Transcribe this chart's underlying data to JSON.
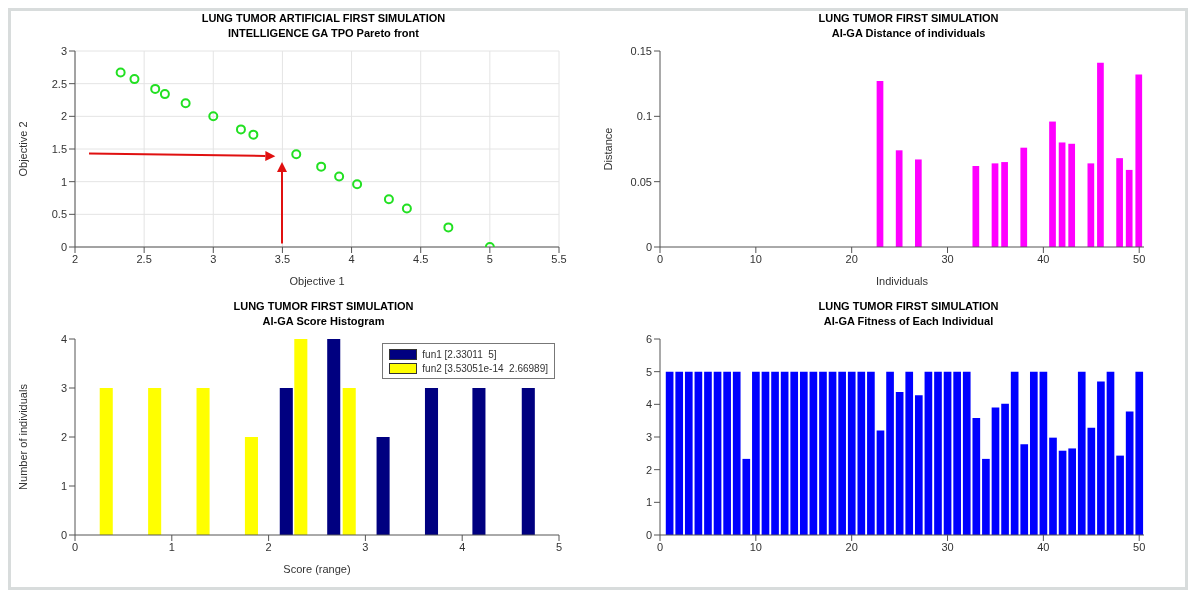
{
  "chart_data": [
    {
      "type": "scatter",
      "title": "LUNG TUMOR ARTIFICIAL FIRST SIMULATION\nINTELLIGENCE GA TPO Pareto front",
      "xlabel": "Objective 1",
      "ylabel": "Objective 2",
      "x": [
        2.33,
        2.43,
        2.58,
        2.65,
        2.8,
        3.0,
        3.2,
        3.29,
        3.6,
        3.78,
        3.91,
        4.04,
        4.27,
        4.4,
        4.7,
        5.0
      ],
      "values": [
        2.67,
        2.57,
        2.42,
        2.34,
        2.2,
        2.0,
        1.8,
        1.72,
        1.42,
        1.23,
        1.08,
        0.96,
        0.73,
        0.59,
        0.3,
        0.0
      ],
      "color": "#22e022",
      "marker": "circle",
      "xlim": [
        2,
        5.5
      ],
      "xticks": [
        2,
        2.5,
        3,
        3.5,
        4,
        4.5,
        5,
        5.5
      ],
      "ylim": [
        0,
        3
      ],
      "yticks": [
        0,
        0.5,
        1,
        1.5,
        2,
        2.5,
        3
      ],
      "grid": true
    },
    {
      "type": "bar",
      "title": "LUNG TUMOR FIRST SIMULATION\nAI-GA Distance of individuals",
      "xlabel": "Individuals",
      "ylabel": "Distance",
      "x": [
        1,
        2,
        3,
        4,
        5,
        6,
        7,
        8,
        9,
        10,
        11,
        12,
        13,
        14,
        15,
        16,
        17,
        18,
        19,
        20,
        21,
        22,
        23,
        24,
        25,
        26,
        27,
        28,
        29,
        30,
        31,
        32,
        33,
        34,
        35,
        36,
        37,
        38,
        39,
        40,
        41,
        42,
        43,
        44,
        45,
        46,
        47,
        48,
        49,
        50
      ],
      "values": [
        0,
        0,
        0,
        0,
        0,
        0,
        0,
        0,
        0,
        0,
        0,
        0,
        0,
        0,
        0,
        0,
        0,
        0,
        0,
        0,
        0,
        0,
        0.127,
        0,
        0.074,
        0,
        0.067,
        0,
        0,
        0,
        0,
        0,
        0.062,
        0,
        0.064,
        0.065,
        0,
        0.076,
        0,
        0,
        0.096,
        0.08,
        0.079,
        0,
        0.064,
        0.141,
        0,
        0.068,
        0.059,
        0.132
      ],
      "color": "#ff00ff",
      "xlim": [
        0,
        50.5
      ],
      "xticks": [
        0,
        10,
        20,
        30,
        40,
        50
      ],
      "ylim": [
        0,
        0.15
      ],
      "yticks": [
        0,
        0.05,
        0.1,
        0.15
      ]
    },
    {
      "type": "bar",
      "title": "LUNG TUMOR FIRST SIMULATION\nAI-GA Score Histogram",
      "xlabel": "Score (range)",
      "ylabel": "Number of individuals",
      "legend": "top right",
      "series": [
        {
          "name": "fun1 [2.33011  5]",
          "color": "#000080",
          "x": [
            2.18,
            2.67,
            3.18,
            3.68,
            4.17,
            4.68
          ],
          "values": [
            3,
            4,
            2,
            3,
            3,
            3
          ]
        },
        {
          "name": "fun2 [3.53051e-14  2.66989]",
          "color": "#ffff00",
          "x": [
            0.32,
            0.82,
            1.32,
            1.82,
            2.33,
            2.83
          ],
          "values": [
            3,
            3,
            3,
            2,
            4,
            3
          ]
        }
      ],
      "xlim": [
        0,
        5
      ],
      "xticks": [
        0,
        1,
        2,
        3,
        4,
        5
      ],
      "ylim": [
        0,
        4
      ],
      "yticks": [
        0,
        1,
        2,
        3,
        4
      ]
    },
    {
      "type": "bar",
      "title": "LUNG TUMOR FIRST SIMULATION\nAI-GA Fitness of Each Individual",
      "x": [
        1,
        2,
        3,
        4,
        5,
        6,
        7,
        8,
        9,
        10,
        11,
        12,
        13,
        14,
        15,
        16,
        17,
        18,
        19,
        20,
        21,
        22,
        23,
        24,
        25,
        26,
        27,
        28,
        29,
        30,
        31,
        32,
        33,
        34,
        35,
        36,
        37,
        38,
        39,
        40,
        41,
        42,
        43,
        44,
        45,
        46,
        47,
        48,
        49,
        50
      ],
      "values": [
        5,
        5,
        5,
        5,
        5,
        5,
        5,
        5,
        2.33,
        5,
        5,
        5,
        5,
        5,
        5,
        5,
        5,
        5,
        5,
        5,
        5,
        5,
        3.2,
        5,
        4.38,
        5,
        4.28,
        5,
        5,
        5,
        5,
        5,
        3.58,
        2.33,
        3.9,
        4.02,
        5,
        2.78,
        5,
        5,
        2.98,
        2.58,
        2.65,
        5,
        3.28,
        4.7,
        5,
        2.43,
        3.78,
        5
      ],
      "color": "#0000ff",
      "xlim": [
        0,
        50.5
      ],
      "xticks": [
        0,
        10,
        20,
        30,
        40,
        50
      ],
      "ylim": [
        0,
        6
      ],
      "yticks": [
        0,
        1,
        2,
        3,
        4,
        5,
        6
      ]
    }
  ]
}
